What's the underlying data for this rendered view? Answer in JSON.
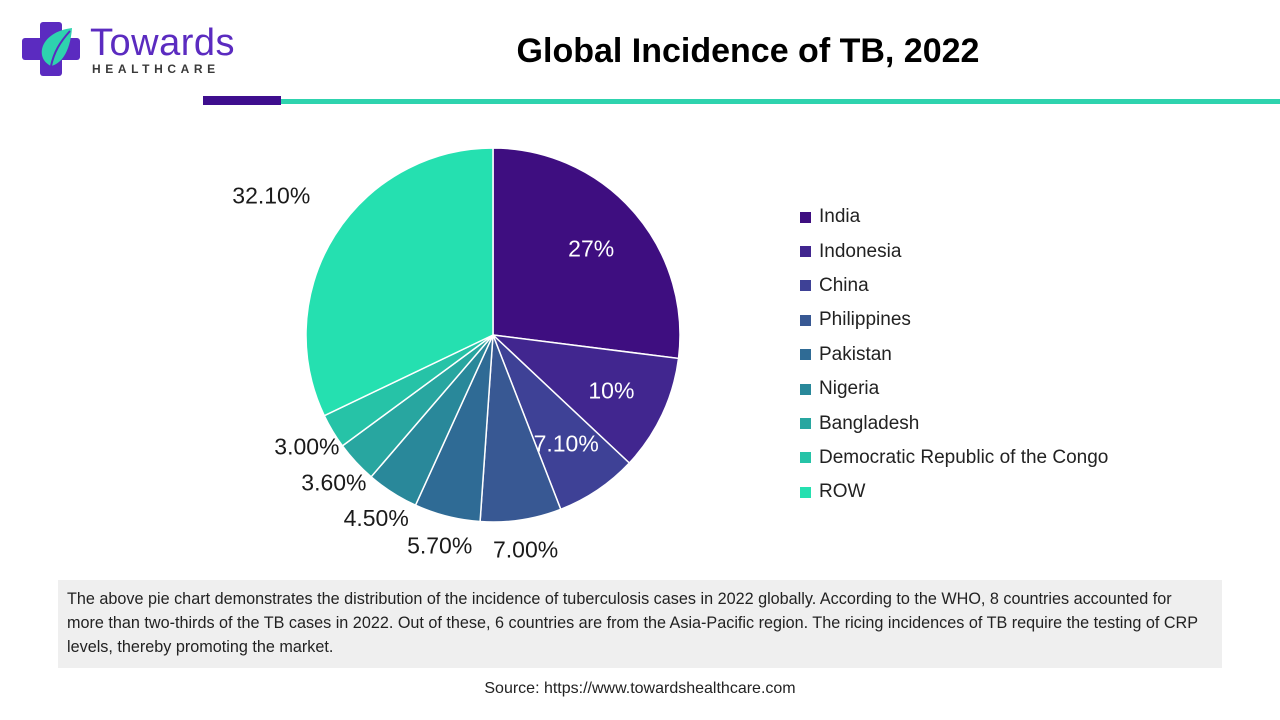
{
  "brand": {
    "name": "Towards",
    "tagline": "HEALTHCARE",
    "logo_icon": "plus-leaf-icon",
    "primary_color": "#5B2BC0",
    "accent_color": "#2ED3AE"
  },
  "title": "Global Incidence of TB, 2022",
  "chart_data": {
    "type": "pie",
    "title": "Global Incidence of TB, 2022",
    "start": "12 o'clock, clockwise",
    "legend_placement": "right",
    "slices": [
      {
        "label": "India",
        "value": 27.0,
        "display": "27%",
        "color": "#3E0E80",
        "label_inside": true
      },
      {
        "label": "Indonesia",
        "value": 10.0,
        "display": "10%",
        "color": "#41268F",
        "label_inside": true
      },
      {
        "label": "China",
        "value": 7.1,
        "display": "7.10%",
        "color": "#3E4196",
        "label_inside": true
      },
      {
        "label": "Philippines",
        "value": 7.0,
        "display": "7.00%",
        "color": "#385893",
        "label_inside": false
      },
      {
        "label": "Pakistan",
        "value": 5.7,
        "display": "5.70%",
        "color": "#2F6B95",
        "label_inside": false
      },
      {
        "label": "Nigeria",
        "value": 4.5,
        "display": "4.50%",
        "color": "#29889A",
        "label_inside": false
      },
      {
        "label": "Bangladesh",
        "value": 3.6,
        "display": "3.60%",
        "color": "#28A6A0",
        "label_inside": false
      },
      {
        "label": "Democratic Republic of the Congo",
        "value": 3.0,
        "display": "3.00%",
        "color": "#26C3A7",
        "label_inside": false
      },
      {
        "label": "ROW",
        "value": 32.1,
        "display": "32.10%",
        "color": "#25E0B0",
        "label_inside": false
      }
    ]
  },
  "description": "The above pie chart demonstrates the distribution of the incidence of tuberculosis cases in 2022 globally. According to the WHO, 8 countries accounted for more than two-thirds of the TB cases in 2022. Out of these, 6 countries are from the Asia-Pacific region. The ricing incidences of TB require the testing of CRP levels, thereby promoting the market.",
  "source": "Source: https://www.towardshealthcare.com"
}
